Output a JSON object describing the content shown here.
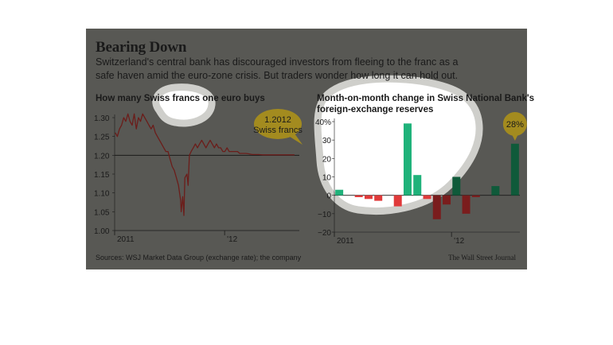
{
  "header": {
    "title": "Bearing Down",
    "subtitle_line1": "Switzerland's central bank has discouraged investors from fleeing to the franc as a",
    "subtitle_line2": "safe haven amid the euro-zone crisis. But traders wonder how long it can hold out."
  },
  "footer": {
    "source": "Sources: WSJ Market Data Group (exchange rate); the company",
    "credit": "The Wall Street Journal"
  },
  "colors": {
    "panel_bg": "#585854",
    "line": "#6b1d1a",
    "floor_line": "#1a1a1a",
    "positive": "#1fb27a",
    "positive_dark": "#0f5a3a",
    "negative": "#e03a3a",
    "negative_dark": "#7a1d1d",
    "annotation": "#a38b1f"
  },
  "chart_data": [
    {
      "type": "line",
      "title": "How many Swiss francs one euro buys",
      "x_tick_labels": [
        "2011",
        "'12"
      ],
      "y_ticks": [
        "1.30",
        "1.25",
        "1.20",
        "1.15",
        "1.10",
        "1.05",
        "1.00"
      ],
      "ylim": [
        1.0,
        1.3
      ],
      "floor_line": 1.2,
      "annotation": {
        "line1": "1.2012",
        "line2": "Swiss francs"
      },
      "series": [
        {
          "x": [
            "2011-01-03",
            "2011-01-10",
            "2011-01-17",
            "2011-01-24",
            "2011-01-31",
            "2011-02-07",
            "2011-02-14",
            "2011-02-21",
            "2011-02-28",
            "2011-03-07",
            "2011-03-14",
            "2011-03-21",
            "2011-03-28",
            "2011-04-04",
            "2011-04-11",
            "2011-04-18",
            "2011-04-25",
            "2011-05-02",
            "2011-05-09",
            "2011-05-16",
            "2011-05-23",
            "2011-05-30",
            "2011-06-06",
            "2011-06-13",
            "2011-06-20",
            "2011-06-27",
            "2011-07-04",
            "2011-07-11",
            "2011-07-18",
            "2011-07-25",
            "2011-08-01",
            "2011-08-08",
            "2011-08-10",
            "2011-08-15",
            "2011-08-19",
            "2011-08-22",
            "2011-08-29",
            "2011-09-02",
            "2011-09-06",
            "2011-09-12",
            "2011-09-19",
            "2011-09-26",
            "2011-10-03",
            "2011-10-10",
            "2011-10-17",
            "2011-10-24",
            "2011-10-31",
            "2011-11-07",
            "2011-11-14",
            "2011-11-21",
            "2011-11-28",
            "2011-12-05",
            "2011-12-12",
            "2011-12-19",
            "2011-12-26",
            "2012-01-02",
            "2012-01-09",
            "2012-01-16",
            "2012-01-23",
            "2012-01-30",
            "2012-02-06",
            "2012-02-13",
            "2012-02-20",
            "2012-02-27",
            "2012-03-05",
            "2012-03-12",
            "2012-03-19",
            "2012-03-26",
            "2012-04-02",
            "2012-04-09",
            "2012-04-16",
            "2012-04-23",
            "2012-04-30",
            "2012-05-07",
            "2012-05-14",
            "2012-05-21",
            "2012-05-28",
            "2012-06-04",
            "2012-06-11",
            "2012-06-18",
            "2012-06-25",
            "2012-07-02",
            "2012-07-09",
            "2012-07-16",
            "2012-07-23",
            "2012-07-30",
            "2012-08-06",
            "2012-08-13",
            "2012-08-20"
          ],
          "values": [
            1.26,
            1.25,
            1.27,
            1.28,
            1.3,
            1.29,
            1.31,
            1.29,
            1.28,
            1.31,
            1.27,
            1.3,
            1.29,
            1.31,
            1.3,
            1.29,
            1.28,
            1.27,
            1.28,
            1.26,
            1.25,
            1.24,
            1.23,
            1.22,
            1.21,
            1.21,
            1.19,
            1.17,
            1.16,
            1.14,
            1.12,
            1.08,
            1.05,
            1.09,
            1.04,
            1.14,
            1.15,
            1.12,
            1.2,
            1.21,
            1.22,
            1.23,
            1.22,
            1.23,
            1.24,
            1.23,
            1.22,
            1.23,
            1.24,
            1.23,
            1.22,
            1.23,
            1.22,
            1.22,
            1.21,
            1.21,
            1.22,
            1.21,
            1.21,
            1.21,
            1.21,
            1.21,
            1.205,
            1.205,
            1.205,
            1.205,
            1.204,
            1.203,
            1.202,
            1.202,
            1.202,
            1.202,
            1.2015,
            1.2012,
            1.2012,
            1.2012,
            1.2012,
            1.2012,
            1.2012,
            1.2012,
            1.2012,
            1.2012,
            1.2012,
            1.2012,
            1.2012,
            1.2012,
            1.2012,
            1.2012,
            1.2012
          ]
        }
      ]
    },
    {
      "type": "bar",
      "title_line1": "Month-on-month change in Swiss National Bank's",
      "title_line2": "foreign-exchange reserves",
      "x_tick_labels": [
        "2011",
        "'12"
      ],
      "y_ticks": [
        "40%",
        "30",
        "20",
        "10",
        "0",
        "−10",
        "−20"
      ],
      "ylim": [
        -20,
        40
      ],
      "annotation": "28%",
      "categories": [
        "2011-01",
        "2011-02",
        "2011-03",
        "2011-04",
        "2011-05",
        "2011-06",
        "2011-07",
        "2011-08",
        "2011-09",
        "2011-10",
        "2011-11",
        "2011-12",
        "2012-01",
        "2012-02",
        "2012-03",
        "2012-04",
        "2012-05",
        "2012-06",
        "2012-07"
      ],
      "values": [
        3,
        0,
        -1,
        -2,
        -3,
        0,
        -6,
        39,
        11,
        -2,
        -13,
        -5,
        10,
        -10,
        -1,
        0,
        5,
        0,
        28
      ]
    }
  ]
}
